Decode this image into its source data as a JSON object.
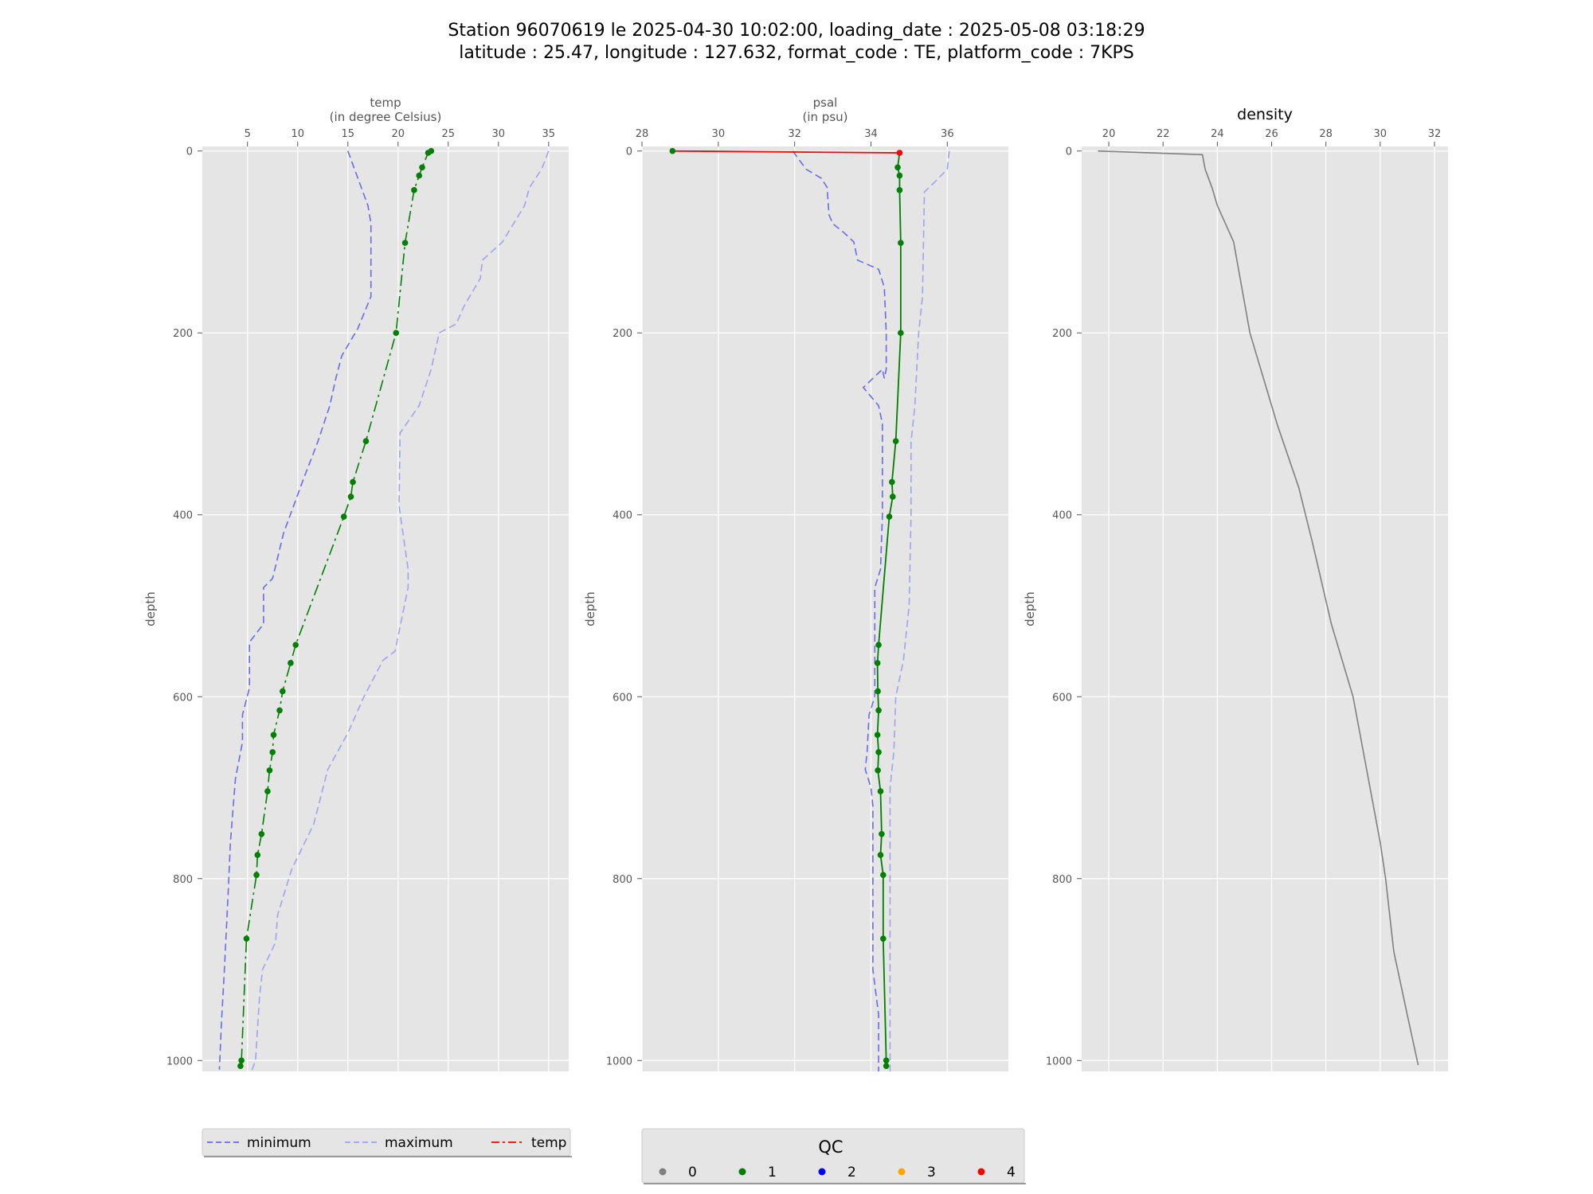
{
  "title": {
    "line1": "Station 96070619 le 2025-04-30 10:02:00, loading_date : 2025-05-08 03:18:29",
    "line2": "latitude : 25.47, longitude : 127.632, format_code : TE, platform_code : 7KPS"
  },
  "chart_data": [
    {
      "type": "line",
      "panel": "temp",
      "title": "",
      "xlabel": "temp\n(in degree Celsius)",
      "xlabel_lines": [
        "temp",
        "(in degree Celsius)"
      ],
      "ylabel": "depth",
      "xlim": [
        0.5,
        37
      ],
      "ylim": [
        1012,
        -5
      ],
      "xticks": [
        5,
        10,
        15,
        20,
        25,
        30,
        35
      ],
      "yticks": [
        0,
        200,
        400,
        600,
        800,
        1000
      ],
      "grid": true,
      "series": [
        {
          "name": "minimum",
          "style": "dashed",
          "color": "#6a6aef",
          "points": [
            [
              15,
              0
            ],
            [
              16,
              30
            ],
            [
              17,
              60
            ],
            [
              17.3,
              80
            ],
            [
              17.3,
              160
            ],
            [
              16,
              195
            ],
            [
              14.4,
              225
            ],
            [
              13.8,
              250
            ],
            [
              13.2,
              280
            ],
            [
              12,
              320
            ],
            [
              10.6,
              360
            ],
            [
              9.6,
              390
            ],
            [
              8.6,
              420
            ],
            [
              7.5,
              470
            ],
            [
              6.6,
              480
            ],
            [
              6.6,
              520
            ],
            [
              5.2,
              540
            ],
            [
              5.2,
              590
            ],
            [
              4.5,
              620
            ],
            [
              4.5,
              650
            ],
            [
              3.8,
              690
            ],
            [
              3.3,
              760
            ],
            [
              3.1,
              810
            ],
            [
              2.7,
              900
            ],
            [
              2.4,
              960
            ],
            [
              2.2,
              1010
            ]
          ]
        },
        {
          "name": "maximum",
          "style": "dashed",
          "color": "#a2a2ef",
          "points": [
            [
              35,
              0
            ],
            [
              34.3,
              20
            ],
            [
              33.1,
              40
            ],
            [
              32.6,
              60
            ],
            [
              30.4,
              100
            ],
            [
              28.4,
              120
            ],
            [
              28.2,
              140
            ],
            [
              26.6,
              170
            ],
            [
              25.8,
              190
            ],
            [
              24.1,
              200
            ],
            [
              23.3,
              240
            ],
            [
              22.1,
              280
            ],
            [
              20.2,
              310
            ],
            [
              20.1,
              390
            ],
            [
              21,
              460
            ],
            [
              21,
              480
            ],
            [
              19.7,
              550
            ],
            [
              18.5,
              560
            ],
            [
              16.6,
              600
            ],
            [
              15,
              640
            ],
            [
              13,
              680
            ],
            [
              11.6,
              740
            ],
            [
              9.4,
              790
            ],
            [
              8,
              840
            ],
            [
              7.8,
              870
            ],
            [
              6.5,
              900
            ],
            [
              6.2,
              930
            ],
            [
              5.8,
              1000
            ],
            [
              5.4,
              1012
            ]
          ]
        },
        {
          "name": "temp",
          "style": "dashdot",
          "color": "#008000",
          "markers": true,
          "points": [
            [
              23.3,
              0
            ],
            [
              23,
              2
            ],
            [
              22.4,
              18
            ],
            [
              22.1,
              27
            ],
            [
              21.6,
              43
            ],
            [
              20.7,
              101
            ],
            [
              19.8,
              200
            ],
            [
              16.8,
              319
            ],
            [
              15.5,
              364
            ],
            [
              15.3,
              380
            ],
            [
              14.6,
              402
            ],
            [
              9.8,
              543
            ],
            [
              9.3,
              563
            ],
            [
              8.5,
              594
            ],
            [
              8.2,
              615
            ],
            [
              7.6,
              642
            ],
            [
              7.5,
              661
            ],
            [
              7.2,
              681
            ],
            [
              7,
              704
            ],
            [
              6.4,
              751
            ],
            [
              6,
              774
            ],
            [
              5.9,
              796
            ],
            [
              4.9,
              866
            ],
            [
              4.4,
              1000
            ],
            [
              4.3,
              1006
            ]
          ]
        }
      ]
    },
    {
      "type": "line",
      "panel": "psal",
      "title": "",
      "xlabel": "psal\n(in psu)",
      "xlabel_lines": [
        "psal",
        "(in psu)"
      ],
      "ylabel": "depth",
      "xlim": [
        28,
        37.6
      ],
      "ylim": [
        1012,
        -5
      ],
      "xticks": [
        28,
        30,
        32,
        34,
        36
      ],
      "yticks": [
        0,
        200,
        400,
        600,
        800,
        1000
      ],
      "grid": true,
      "series": [
        {
          "name": "minimum",
          "style": "dashed",
          "color": "#6a6aef",
          "points": [
            [
              31.95,
              0
            ],
            [
              32.3,
              20
            ],
            [
              32.7,
              30
            ],
            [
              32.85,
              40
            ],
            [
              32.9,
              70
            ],
            [
              33,
              80
            ],
            [
              33.3,
              90
            ],
            [
              33.55,
              100
            ],
            [
              33.65,
              120
            ],
            [
              34.2,
              130
            ],
            [
              34.35,
              150
            ],
            [
              34.4,
              200
            ],
            [
              34.4,
              240
            ],
            [
              34.35,
              250
            ],
            [
              34.3,
              240
            ],
            [
              33.8,
              260
            ],
            [
              34.2,
              280
            ],
            [
              34.3,
              300
            ],
            [
              34.3,
              400
            ],
            [
              34.25,
              460
            ],
            [
              34.1,
              480
            ],
            [
              34.1,
              600
            ],
            [
              33.95,
              620
            ],
            [
              33.9,
              660
            ],
            [
              33.85,
              680
            ],
            [
              34,
              700
            ],
            [
              34.05,
              720
            ],
            [
              34.05,
              900
            ],
            [
              34.2,
              950
            ],
            [
              34.2,
              1012
            ]
          ]
        },
        {
          "name": "maximum",
          "style": "dashed",
          "color": "#a2a2ef",
          "points": [
            [
              36.05,
              0
            ],
            [
              36.0,
              20
            ],
            [
              35.65,
              35
            ],
            [
              35.4,
              45
            ],
            [
              35.35,
              160
            ],
            [
              35.25,
              200
            ],
            [
              35.15,
              280
            ],
            [
              35.05,
              320
            ],
            [
              35.05,
              400
            ],
            [
              35,
              500
            ],
            [
              34.85,
              560
            ],
            [
              34.65,
              600
            ],
            [
              34.6,
              660
            ],
            [
              34.5,
              700
            ],
            [
              34.5,
              1012
            ]
          ]
        },
        {
          "name": "psal",
          "style": "solid",
          "color": "#008000",
          "markers": true,
          "points": [
            [
              28.8,
              0
            ],
            [
              34.75,
              2
            ],
            [
              34.7,
              18
            ],
            [
              34.75,
              27
            ],
            [
              34.75,
              43
            ],
            [
              34.78,
              101
            ],
            [
              34.78,
              200
            ],
            [
              34.65,
              319
            ],
            [
              34.55,
              364
            ],
            [
              34.57,
              380
            ],
            [
              34.48,
              402
            ],
            [
              34.2,
              543
            ],
            [
              34.17,
              563
            ],
            [
              34.18,
              594
            ],
            [
              34.2,
              615
            ],
            [
              34.17,
              642
            ],
            [
              34.2,
              661
            ],
            [
              34.18,
              681
            ],
            [
              34.25,
              704
            ],
            [
              34.28,
              751
            ],
            [
              34.25,
              774
            ],
            [
              34.32,
              796
            ],
            [
              34.32,
              866
            ],
            [
              34.4,
              1000
            ],
            [
              34.4,
              1006
            ]
          ],
          "segment_colors": [
            "#ff0000"
          ]
        }
      ]
    },
    {
      "type": "line",
      "panel": "density",
      "title": "density",
      "xlabel": "",
      "ylabel": "depth",
      "xlim": [
        19,
        32.5
      ],
      "ylim": [
        1012,
        -5
      ],
      "xticks": [
        20,
        22,
        24,
        26,
        28,
        30,
        32
      ],
      "yticks": [
        0,
        200,
        400,
        600,
        800,
        1000
      ],
      "grid": true,
      "series": [
        {
          "name": "density",
          "style": "solid",
          "color": "#808080",
          "points": [
            [
              19.6,
              0
            ],
            [
              23.45,
              4
            ],
            [
              23.55,
              20
            ],
            [
              23.8,
              40
            ],
            [
              24,
              60
            ],
            [
              24.6,
              100
            ],
            [
              25.2,
              200
            ],
            [
              26.2,
              300
            ],
            [
              27,
              370
            ],
            [
              27.5,
              430
            ],
            [
              28.2,
              520
            ],
            [
              29.0,
              600
            ],
            [
              29.5,
              680
            ],
            [
              30.0,
              760
            ],
            [
              30.2,
              800
            ],
            [
              30.5,
              880
            ],
            [
              31.0,
              950
            ],
            [
              31.4,
              1005
            ]
          ]
        }
      ]
    }
  ],
  "legend_temp": {
    "entries": [
      {
        "label": "minimum",
        "color": "#6a6aef",
        "style": "dashed"
      },
      {
        "label": "maximum",
        "color": "#a2a2ef",
        "style": "dashed"
      },
      {
        "label": "temp",
        "color": "#ff0000",
        "style": "dashdot"
      }
    ]
  },
  "legend_qc": {
    "title": "QC",
    "entries": [
      {
        "label": "0",
        "color": "#808080"
      },
      {
        "label": "1",
        "color": "#008000"
      },
      {
        "label": "2",
        "color": "#0000ff"
      },
      {
        "label": "3",
        "color": "#ffa500"
      },
      {
        "label": "4",
        "color": "#ff0000"
      }
    ]
  },
  "colors": {
    "panel_bg": "#e5e5e5",
    "grid": "#ffffff",
    "tick_text": "#555555"
  }
}
